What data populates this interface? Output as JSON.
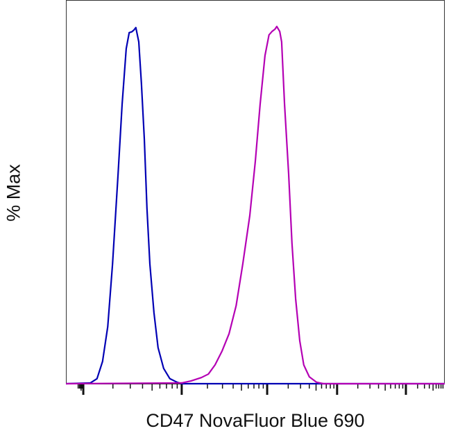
{
  "chart_data": {
    "type": "line",
    "title": "",
    "xlabel": "CD47 NovaFluor Blue 690",
    "ylabel": "% Max",
    "xlim": [
      0,
      1024
    ],
    "ylim": [
      0,
      100
    ],
    "x_scale": "biexponential",
    "major_ticks": [
      47,
      313,
      544,
      733,
      919
    ],
    "grid": false,
    "legend": "none",
    "series": [
      {
        "color": "#0000b4",
        "x": [
          0,
          66,
          84,
          99,
          113,
          126,
          141,
          152,
          163,
          171,
          178,
          184,
          189,
          197,
          204,
          212,
          219,
          227,
          238,
          249,
          264,
          281,
          300,
          313,
          1024
        ],
        "y": [
          0,
          0.2,
          1.3,
          5.8,
          14.9,
          31.2,
          54.7,
          72.8,
          87.3,
          91.5,
          91.7,
          92.2,
          92.8,
          89.1,
          78.3,
          63.8,
          45.7,
          31.2,
          18.5,
          9.4,
          4.0,
          1.3,
          0.4,
          0,
          0
        ]
      },
      {
        "color": "#b400b4",
        "x": [
          0,
          313,
          338,
          366,
          385,
          403,
          422,
          441,
          460,
          478,
          497,
          512,
          525,
          538,
          549,
          557,
          565,
          570,
          578,
          583,
          591,
          602,
          611,
          621,
          632,
          643,
          658,
          677,
          696,
          1024
        ],
        "y": [
          0,
          0.2,
          0.7,
          1.6,
          2.5,
          4.9,
          8.5,
          13.0,
          20.3,
          31.2,
          43.8,
          58.0,
          72.8,
          85.5,
          90.9,
          91.8,
          92.4,
          93.1,
          91.8,
          89.1,
          72.8,
          54.7,
          36.6,
          22.1,
          11.2,
          4.9,
          1.8,
          0.4,
          0,
          0
        ]
      }
    ]
  }
}
